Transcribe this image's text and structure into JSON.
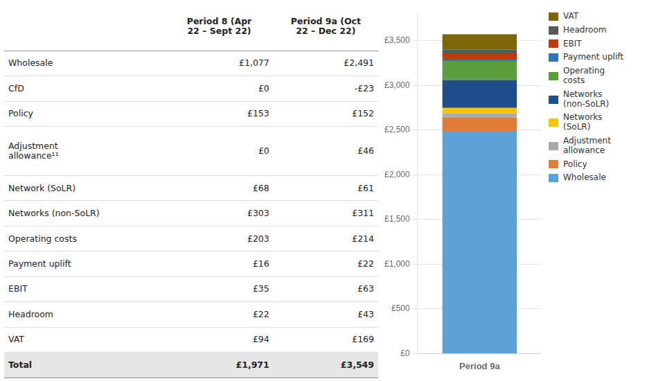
{
  "chart_data": [
    {
      "type": "table",
      "columns": [
        "Period 8 (Apr\n22 – Sept 22)",
        "Period 9a (Oct\n22 – Dec 22)"
      ],
      "rows": [
        {
          "label": "Wholesale",
          "values": [
            "£1,077",
            "£2,491"
          ]
        },
        {
          "label": "CfD",
          "values": [
            "£0",
            "-£23"
          ]
        },
        {
          "label": "Policy",
          "values": [
            "£153",
            "£152"
          ]
        },
        {
          "label": "Adjustment\nallowance¹¹",
          "values": [
            "£0",
            "£46"
          ]
        },
        {
          "label": "Network (SoLR)",
          "values": [
            "£68",
            "£61"
          ]
        },
        {
          "label": "Networks (non-SoLR)",
          "values": [
            "£303",
            "£311"
          ]
        },
        {
          "label": "Operating costs",
          "values": [
            "£203",
            "£214"
          ]
        },
        {
          "label": "Payment uplift",
          "values": [
            "£16",
            "£22"
          ]
        },
        {
          "label": "EBIT",
          "values": [
            "£35",
            "£63"
          ]
        },
        {
          "label": "Headroom",
          "values": [
            "£22",
            "£43"
          ]
        },
        {
          "label": "VAT",
          "values": [
            "£94",
            "£169"
          ]
        }
      ],
      "total": {
        "label": "Total",
        "values": [
          "£1,971",
          "£3,549"
        ]
      }
    },
    {
      "type": "bar",
      "stacked": true,
      "grid": true,
      "legend": "upper right",
      "categories": [
        "Period 9a"
      ],
      "series": [
        {
          "name": "Wholesale",
          "color": "#5BA3D9",
          "values": [
            2491
          ]
        },
        {
          "name": "Policy",
          "color": "#E07B39",
          "values": [
            152
          ]
        },
        {
          "name": "Adjustment\nallowance",
          "color": "#AAAAAA",
          "values": [
            46
          ]
        },
        {
          "name": "Networks\n(SoLR)",
          "color": "#F5C400",
          "values": [
            61
          ]
        },
        {
          "name": "Networks\n(non-SoLR)",
          "color": "#1F4E8C",
          "values": [
            311
          ]
        },
        {
          "name": "Operating\ncosts",
          "color": "#5B9E3E",
          "values": [
            214
          ]
        },
        {
          "name": "Payment uplift",
          "color": "#2E75B6",
          "values": [
            22
          ]
        },
        {
          "name": "EBIT",
          "color": "#C0390B",
          "values": [
            63
          ]
        },
        {
          "name": "Headroom",
          "color": "#595959",
          "values": [
            43
          ]
        },
        {
          "name": "VAT",
          "color": "#7D6608",
          "values": [
            169
          ]
        }
      ],
      "ylim": [
        0,
        3800
      ],
      "yticks": [
        {
          "value": 0,
          "label": "£0"
        },
        {
          "value": 500,
          "label": "£500"
        },
        {
          "value": 1000,
          "label": "£1,000"
        },
        {
          "value": 1500,
          "label": "£1,500"
        },
        {
          "value": 2000,
          "label": "£2,000"
        },
        {
          "value": 2500,
          "label": "£2,500"
        },
        {
          "value": 3000,
          "label": "£3,000"
        },
        {
          "value": 3500,
          "label": "£3,500"
        }
      ]
    }
  ]
}
